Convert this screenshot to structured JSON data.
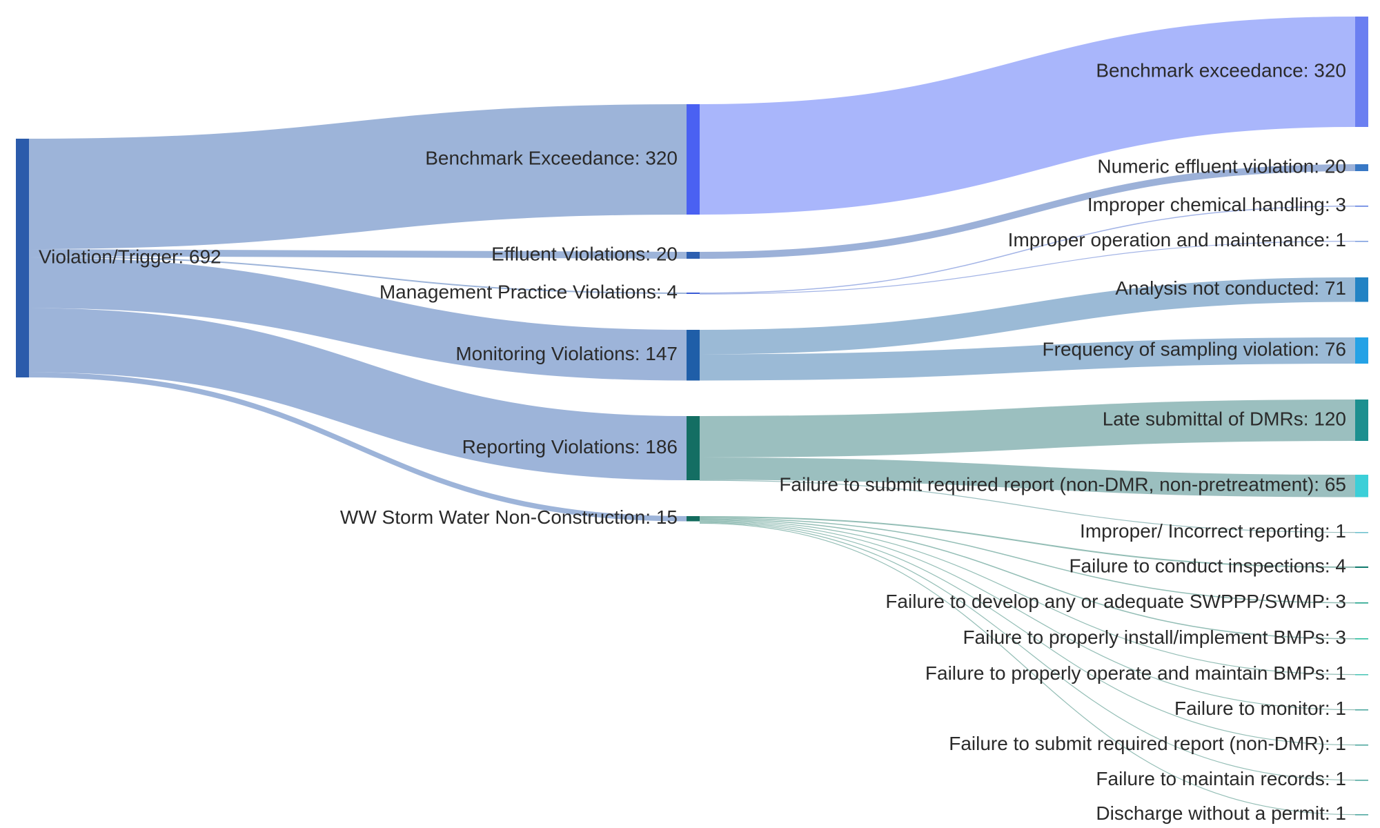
{
  "chart_data": {
    "type": "sankey",
    "title": "",
    "nodes": [
      {
        "id": "root",
        "label": "Violation/Trigger: 692",
        "value": 692,
        "color": "#2b5bab"
      },
      {
        "id": "bench",
        "label": "Benchmark Exceedance: 320",
        "value": 320,
        "color": "#4a61f2"
      },
      {
        "id": "effl",
        "label": "Effluent Violations: 20",
        "value": 20,
        "color": "#2d5fb0"
      },
      {
        "id": "mgmt",
        "label": "Management Practice Violations: 4",
        "value": 4,
        "color": "#3a5bd6"
      },
      {
        "id": "monit",
        "label": "Monitoring Violations: 147",
        "value": 147,
        "color": "#1f5ea8"
      },
      {
        "id": "report",
        "label": "Reporting Violations: 186",
        "value": 186,
        "color": "#146e63"
      },
      {
        "id": "ww",
        "label": "WW Storm Water Non-Construction: 15",
        "value": 15,
        "color": "#136c5e"
      },
      {
        "id": "t_bench",
        "label": "Benchmark exceedance: 320",
        "value": 320,
        "color": "#6b7ff1"
      },
      {
        "id": "t_numeric",
        "label": "Numeric effluent violation: 20",
        "value": 20,
        "color": "#3878c5"
      },
      {
        "id": "t_chem",
        "label": "Improper chemical handling: 3",
        "value": 3,
        "color": "#5f7fe0"
      },
      {
        "id": "t_om",
        "label": "Improper operation and maintenance: 1",
        "value": 1,
        "color": "#7fa0e0"
      },
      {
        "id": "t_analysis",
        "label": "Analysis not conducted: 71",
        "value": 71,
        "color": "#2383c4"
      },
      {
        "id": "t_freq",
        "label": "Frequency of sampling violation: 76",
        "value": 76,
        "color": "#25a2e6"
      },
      {
        "id": "t_late",
        "label": "Late submittal of DMRs: 120",
        "value": 120,
        "color": "#1d8f8f"
      },
      {
        "id": "t_fsrr",
        "label": "Failure to submit required report (non-DMR, non-pretreatment): 65",
        "value": 65,
        "color": "#3ccfd8"
      },
      {
        "id": "t_improper",
        "label": "Improper/ Incorrect reporting: 1",
        "value": 1,
        "color": "#6fc2cf"
      },
      {
        "id": "t_inspect",
        "label": "Failure to conduct inspections: 4",
        "value": 4,
        "color": "#0f7a6c"
      },
      {
        "id": "t_swppp",
        "label": "Failure to develop any or adequate SWPPP/SWMP: 3",
        "value": 3,
        "color": "#1fa38a"
      },
      {
        "id": "t_install",
        "label": "Failure to properly install/implement BMPs: 3",
        "value": 3,
        "color": "#29bd9d"
      },
      {
        "id": "t_operate",
        "label": "Failure to properly operate and maintain BMPs: 1",
        "value": 1,
        "color": "#4fc7b9"
      },
      {
        "id": "t_monitor",
        "label": "Failure to monitor: 1",
        "value": 1,
        "color": "#4fa8a0"
      },
      {
        "id": "t_srnd",
        "label": "Failure to submit required report (non-DMR): 1",
        "value": 1,
        "color": "#4fa8a0"
      },
      {
        "id": "t_records",
        "label": "Failure to maintain records: 1",
        "value": 1,
        "color": "#4fa8a0"
      },
      {
        "id": "t_discharge",
        "label": "Discharge without a permit: 1",
        "value": 1,
        "color": "#4fa8a0"
      }
    ],
    "links": [
      {
        "source": "root",
        "target": "bench",
        "value": 320
      },
      {
        "source": "root",
        "target": "effl",
        "value": 20
      },
      {
        "source": "root",
        "target": "mgmt",
        "value": 4
      },
      {
        "source": "root",
        "target": "monit",
        "value": 147
      },
      {
        "source": "root",
        "target": "report",
        "value": 186
      },
      {
        "source": "root",
        "target": "ww",
        "value": 15
      },
      {
        "source": "bench",
        "target": "t_bench",
        "value": 320
      },
      {
        "source": "effl",
        "target": "t_numeric",
        "value": 20
      },
      {
        "source": "mgmt",
        "target": "t_chem",
        "value": 3
      },
      {
        "source": "mgmt",
        "target": "t_om",
        "value": 1
      },
      {
        "source": "monit",
        "target": "t_analysis",
        "value": 71
      },
      {
        "source": "monit",
        "target": "t_freq",
        "value": 76
      },
      {
        "source": "report",
        "target": "t_late",
        "value": 120
      },
      {
        "source": "report",
        "target": "t_fsrr",
        "value": 65
      },
      {
        "source": "report",
        "target": "t_improper",
        "value": 1
      },
      {
        "source": "ww",
        "target": "t_inspect",
        "value": 4
      },
      {
        "source": "ww",
        "target": "t_swppp",
        "value": 3
      },
      {
        "source": "ww",
        "target": "t_install",
        "value": 3
      },
      {
        "source": "ww",
        "target": "t_operate",
        "value": 1
      },
      {
        "source": "ww",
        "target": "t_monitor",
        "value": 1
      },
      {
        "source": "ww",
        "target": "t_srnd",
        "value": 1
      },
      {
        "source": "ww",
        "target": "t_records",
        "value": 1
      },
      {
        "source": "ww",
        "target": "t_discharge",
        "value": 1
      }
    ],
    "link_colors": {
      "bench": "#a9b6fb",
      "effl": "#9cb1d8",
      "mgmt": "#a3b4e6",
      "monit": "#9bbad6",
      "report": "#9bbfbf",
      "ww": "#94beb6",
      "root": "#9db4d9"
    }
  }
}
